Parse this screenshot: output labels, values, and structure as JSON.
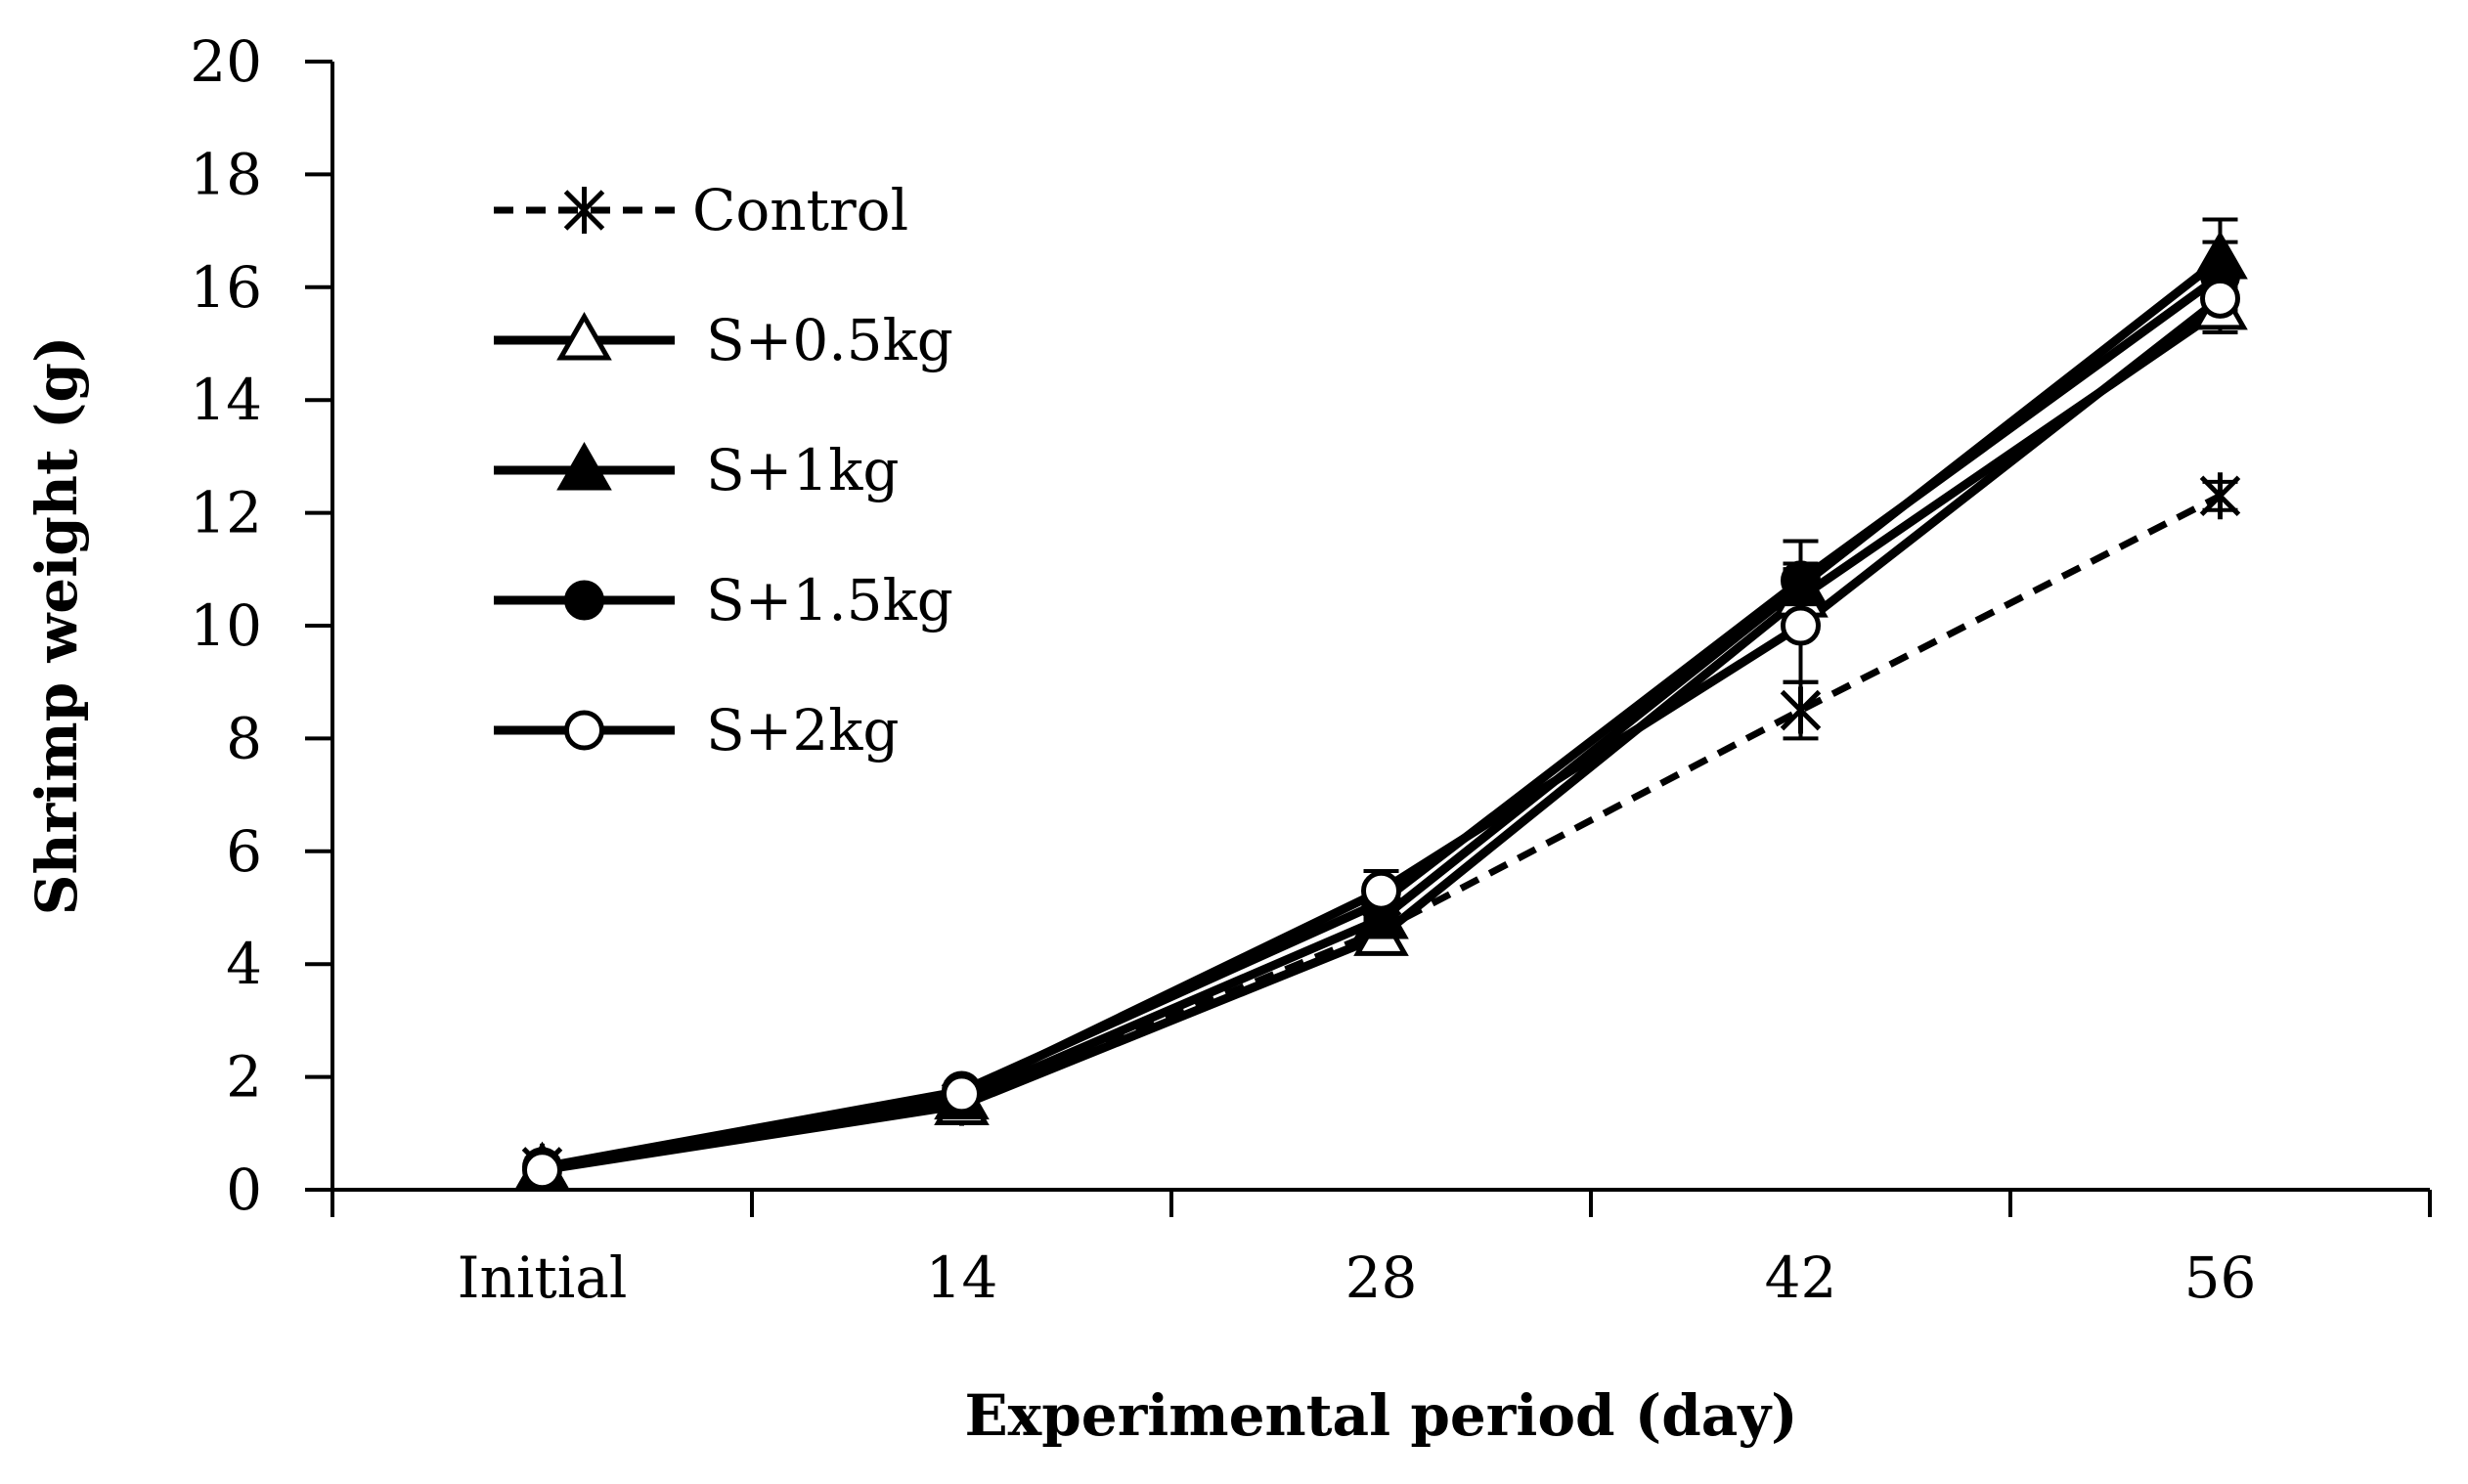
{
  "chart_data": {
    "type": "line",
    "title": "",
    "xlabel": "Experimental  period (day)",
    "ylabel": "Shrimp  weight (g)",
    "categories": [
      "Initial",
      "14",
      "28",
      "42",
      "56"
    ],
    "ylim": [
      0,
      20
    ],
    "yticks": [
      0,
      2,
      4,
      6,
      8,
      10,
      12,
      14,
      16,
      18,
      20
    ],
    "grid": false,
    "legend_position": "top-left",
    "series": [
      {
        "name": "Control",
        "marker": "star",
        "line": "dashed",
        "values": [
          0.4,
          1.55,
          4.6,
          8.5,
          12.3
        ],
        "errors": [
          0.15,
          0.2,
          0.25,
          0.5,
          0.25
        ]
      },
      {
        "name": "S+0.5kg",
        "marker": "triangle-open",
        "line": "solid",
        "values": [
          0.35,
          1.5,
          4.5,
          10.5,
          15.6
        ],
        "errors": [
          0.1,
          0.2,
          0.2,
          0.5,
          0.4
        ]
      },
      {
        "name": "S+1kg",
        "marker": "triangle-filled",
        "line": "solid",
        "values": [
          0.35,
          1.6,
          4.8,
          10.7,
          16.5
        ],
        "errors": [
          0.1,
          0.2,
          0.25,
          0.4,
          0.7
        ]
      },
      {
        "name": "S+1.5kg",
        "marker": "circle-filled",
        "line": "solid",
        "values": [
          0.4,
          1.75,
          5.1,
          10.8,
          16.2
        ],
        "errors": [
          0.1,
          0.15,
          0.3,
          0.7,
          0.6
        ]
      },
      {
        "name": "S+2kg",
        "marker": "circle-open",
        "line": "solid",
        "values": [
          0.35,
          1.7,
          5.3,
          10.0,
          15.8
        ],
        "errors": [
          0.1,
          0.15,
          0.35,
          1.0,
          0.5
        ]
      }
    ]
  }
}
